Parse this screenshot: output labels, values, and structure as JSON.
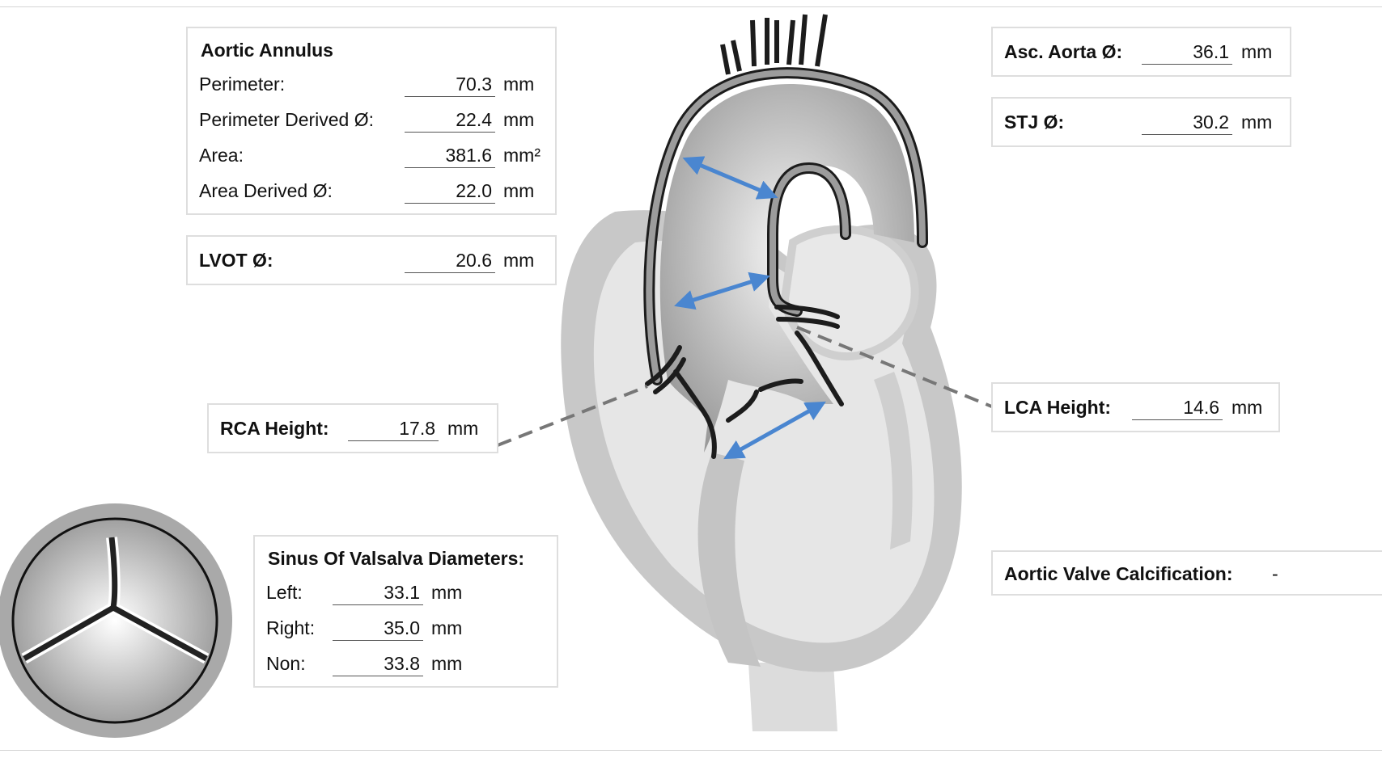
{
  "aortic_annulus": {
    "title": "Aortic Annulus",
    "rows": [
      {
        "label": "Perimeter:",
        "value": "70.3",
        "unit": "mm"
      },
      {
        "label": "Perimeter Derived Ø:",
        "value": "22.4",
        "unit": "mm"
      },
      {
        "label": "Area:",
        "value": "381.6",
        "unit": "mm²"
      },
      {
        "label": "Area Derived Ø:",
        "value": "22.0",
        "unit": "mm"
      }
    ]
  },
  "lvot": {
    "label": "LVOT Ø:",
    "value": "20.6",
    "unit": "mm"
  },
  "rca_height": {
    "label": "RCA Height:",
    "value": "17.8",
    "unit": "mm"
  },
  "sinus_of_valsalva": {
    "title": "Sinus Of Valsalva Diameters:",
    "rows": [
      {
        "label": "Left:",
        "value": "33.1",
        "unit": "mm"
      },
      {
        "label": "Right:",
        "value": "35.0",
        "unit": "mm"
      },
      {
        "label": "Non:",
        "value": "33.8",
        "unit": "mm"
      }
    ]
  },
  "asc_aorta": {
    "label": "Asc. Aorta Ø:",
    "value": "36.1",
    "unit": "mm"
  },
  "stj": {
    "label": "STJ Ø:",
    "value": "30.2",
    "unit": "mm"
  },
  "lca_height": {
    "label": "LCA Height:",
    "value": "14.6",
    "unit": "mm"
  },
  "aortic_valve_calcification": {
    "label": "Aortic Valve Calcification:",
    "value": "-"
  },
  "colors": {
    "arrow": "#4a86d0",
    "heart_fill": "#e4e4e4",
    "heart_shade": "#c4c4c4",
    "aorta_wall": "#1c1c1c"
  }
}
